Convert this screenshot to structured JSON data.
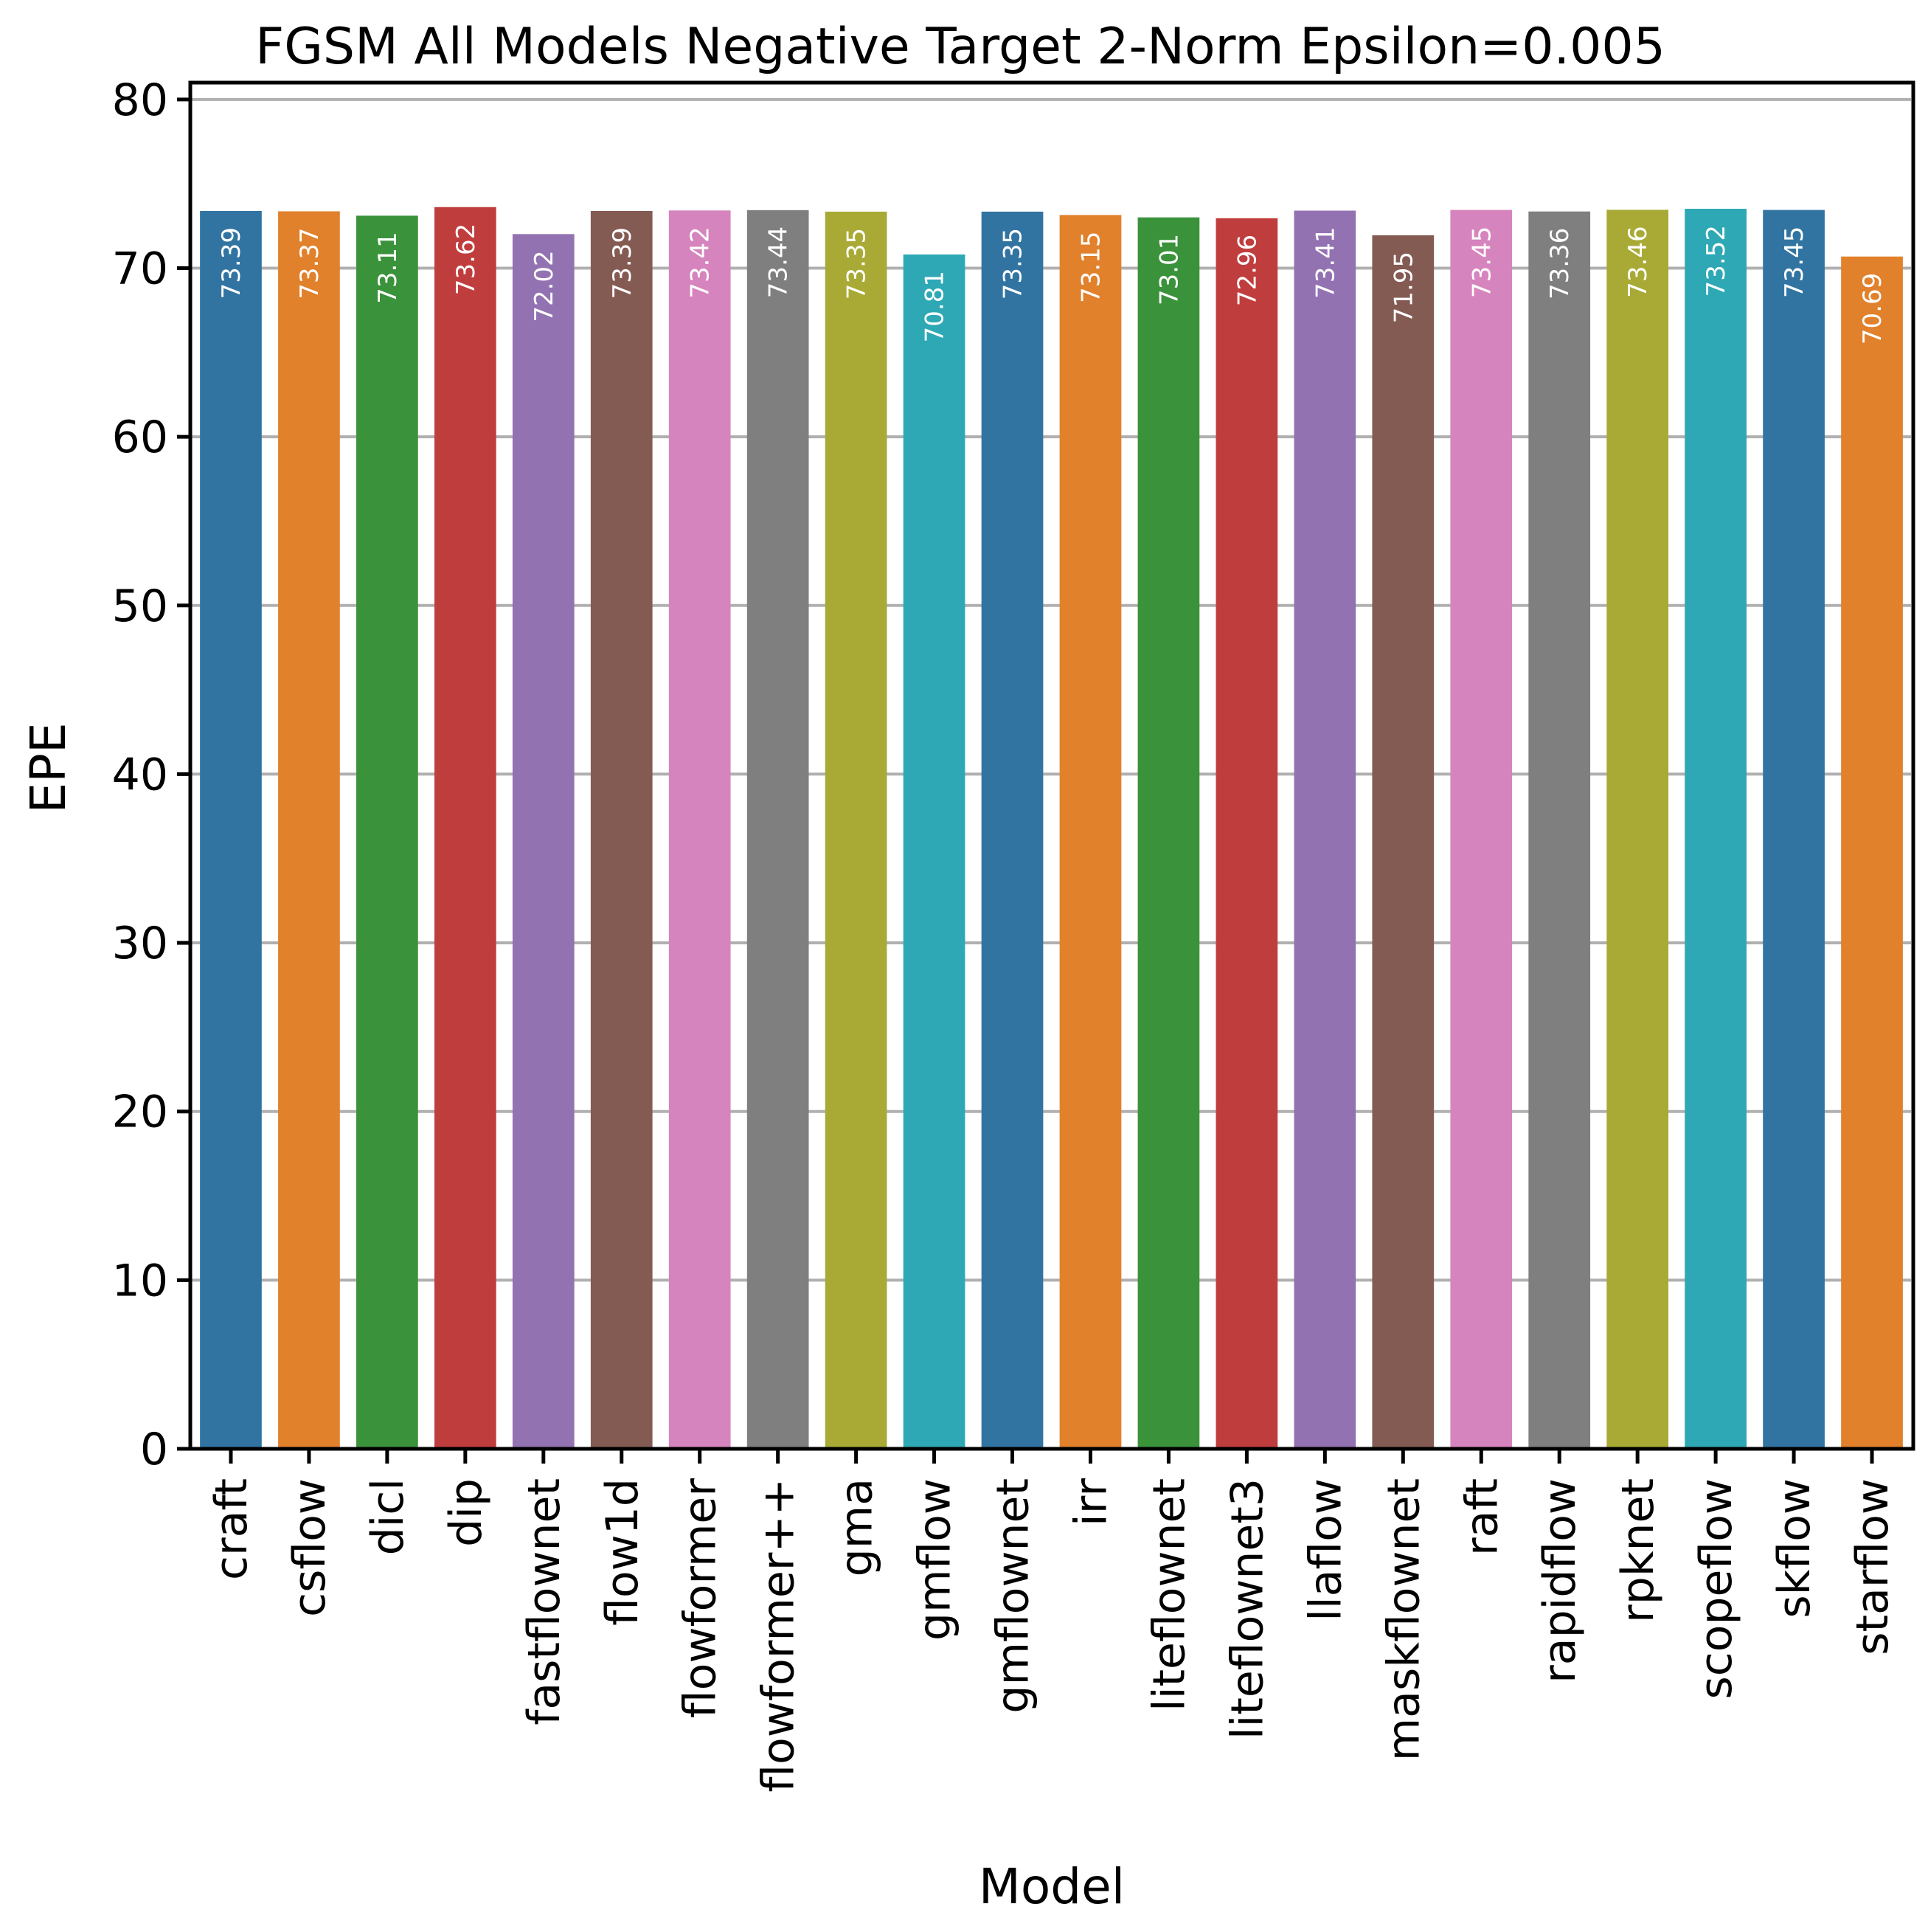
{
  "chart_data": {
    "type": "bar",
    "title": "FGSM All Models Negative Target 2-Norm Epsilon=0.005",
    "xlabel": "Model",
    "ylabel": "EPE",
    "ylim": [
      0,
      81
    ],
    "yticks": [
      0,
      10,
      20,
      30,
      40,
      50,
      60,
      70,
      80
    ],
    "grid": "horizontal",
    "categories": [
      "craft",
      "csflow",
      "dicl",
      "dip",
      "fastflownet",
      "flow1d",
      "flowformer",
      "flowformer++",
      "gma",
      "gmflow",
      "gmflownet",
      "irr",
      "liteflownet",
      "liteflownet3",
      "llaflow",
      "maskflownet",
      "raft",
      "rapidflow",
      "rpknet",
      "scopeflow",
      "skflow",
      "starflow"
    ],
    "values": [
      73.39,
      73.37,
      73.11,
      73.62,
      72.02,
      73.39,
      73.42,
      73.44,
      73.35,
      70.81,
      73.35,
      73.15,
      73.01,
      72.96,
      73.41,
      71.95,
      73.45,
      73.36,
      73.46,
      73.52,
      73.45,
      70.69
    ],
    "value_labels": [
      "73.39",
      "73.37",
      "73.11",
      "73.62",
      "72.02",
      "73.39",
      "73.42",
      "73.44",
      "73.35",
      "70.81",
      "73.35",
      "73.15",
      "73.01",
      "72.96",
      "73.41",
      "71.95",
      "73.45",
      "73.36",
      "73.46",
      "73.52",
      "73.45",
      "70.69"
    ],
    "colors": [
      "#3274a1",
      "#e1812c",
      "#3a923a",
      "#c03d3e",
      "#9372b2",
      "#845b53",
      "#d684bd",
      "#7f7f7f",
      "#a9aa35",
      "#2ea8b5",
      "#3274a1",
      "#e1812c",
      "#3a923a",
      "#c03d3e",
      "#9372b2",
      "#845b53",
      "#d684bd",
      "#7f7f7f",
      "#a9aa35",
      "#2ea8b5",
      "#3274a1",
      "#e1812c"
    ],
    "grid_color": "#b0b0b0"
  }
}
